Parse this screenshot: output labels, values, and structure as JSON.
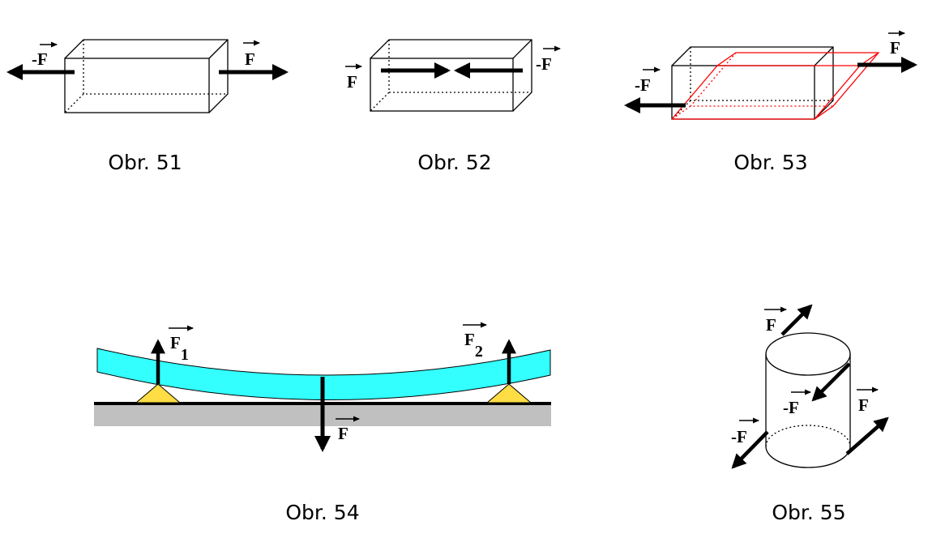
{
  "figures": [
    {
      "caption": "Obr. 51",
      "labels": {
        "left": "-F",
        "right": "F"
      }
    },
    {
      "caption": "Obr. 52",
      "labels": {
        "left": "F",
        "right": "-F"
      }
    },
    {
      "caption": "Obr. 53",
      "labels": {
        "left": "-F",
        "right": "F"
      }
    },
    {
      "caption": "Obr. 54",
      "labels": {
        "support1": "F",
        "support1_sub": "1",
        "support2": "F",
        "support2_sub": "2",
        "load": "F"
      }
    },
    {
      "caption": "Obr. 55",
      "labels": {
        "top": "F",
        "inner": "-F",
        "right": "F",
        "bottom": "-F"
      }
    }
  ],
  "colors": {
    "beam": "#33ffff",
    "support": "#ffdd44",
    "ground": "#c0c0c0",
    "deformed_outline": "#ff0000"
  }
}
